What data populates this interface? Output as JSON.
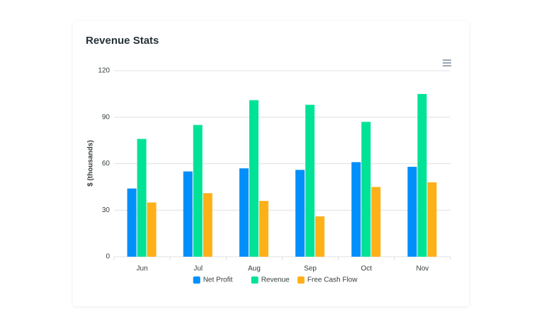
{
  "chart_data": {
    "type": "bar",
    "title": "Revenue Stats",
    "y_label": "$ (thousands)",
    "categories": [
      "Jun",
      "Jul",
      "Aug",
      "Sep",
      "Oct",
      "Nov"
    ],
    "series": [
      {
        "name": "Net Profit",
        "color": "#008FFB",
        "values": [
          44,
          55,
          57,
          56,
          61,
          58
        ]
      },
      {
        "name": "Revenue",
        "color": "#00E396",
        "values": [
          76,
          85,
          101,
          98,
          87,
          105
        ]
      },
      {
        "name": "Free Cash Flow",
        "color": "#FEB019",
        "values": [
          35,
          41,
          36,
          26,
          45,
          48
        ]
      }
    ],
    "ylim": [
      0,
      120
    ],
    "yticks": [
      0,
      30,
      60,
      90,
      120
    ],
    "grid": true,
    "legend": "bottom"
  }
}
